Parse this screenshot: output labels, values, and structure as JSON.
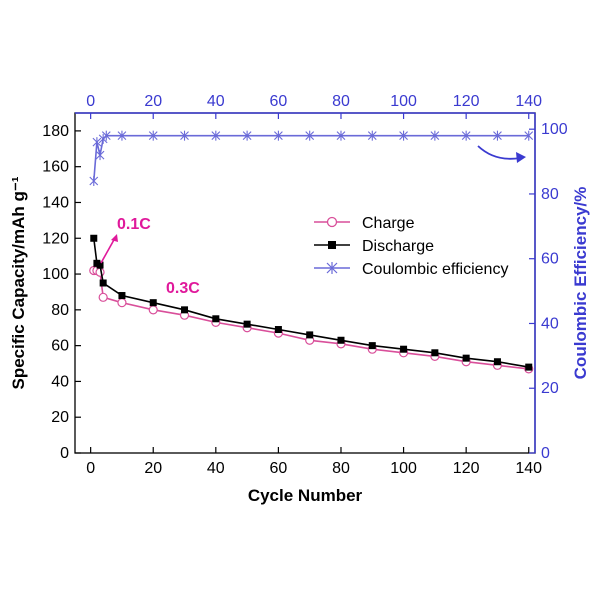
{
  "chart_data": {
    "type": "line",
    "title": "",
    "xlabel": "Cycle Number",
    "ylabel_left": "Specific Capacity/mAh g⁻¹",
    "ylabel_right": "Coulombic Efficiency/%",
    "xlim": [
      -5,
      142
    ],
    "ylim_left": [
      0,
      190
    ],
    "ylim_right": [
      0,
      105
    ],
    "x_ticks": [
      0,
      20,
      40,
      60,
      80,
      100,
      120,
      140
    ],
    "y_left_ticks": [
      0,
      20,
      40,
      60,
      80,
      100,
      120,
      140,
      160,
      180
    ],
    "y_right_ticks": [
      0,
      20,
      40,
      60,
      80,
      100
    ],
    "top_axis_ticks": [
      0,
      20,
      40,
      60,
      80,
      100,
      120,
      140
    ],
    "legend": {
      "position": "center-right",
      "entries": [
        "Charge",
        "Discharge",
        "Coulombic efficiency"
      ]
    },
    "annotations": [
      {
        "text": "0.1C",
        "color": "#e0199b"
      },
      {
        "text": "0.3C",
        "color": "#e0199b"
      }
    ],
    "colors": {
      "charge": "#d94f9a",
      "discharge": "#000000",
      "ce": "#6a6ad8",
      "right_axis": "#3a3ad0",
      "annotation": "#e0199b"
    },
    "series": [
      {
        "name": "Charge",
        "axis": "left",
        "marker": "open-circle",
        "x": [
          1,
          2,
          3,
          4,
          10,
          20,
          30,
          40,
          50,
          60,
          70,
          80,
          90,
          100,
          110,
          120,
          130,
          140
        ],
        "values": [
          102,
          102,
          101,
          87,
          84,
          80,
          77,
          73,
          70,
          67,
          63,
          61,
          58,
          56,
          54,
          51,
          49,
          47
        ]
      },
      {
        "name": "Discharge",
        "axis": "left",
        "marker": "filled-square",
        "x": [
          1,
          2,
          3,
          4,
          10,
          20,
          30,
          40,
          50,
          60,
          70,
          80,
          90,
          100,
          110,
          120,
          130,
          140
        ],
        "values": [
          120,
          106,
          105,
          95,
          88,
          84,
          80,
          75,
          72,
          69,
          66,
          63,
          60,
          58,
          56,
          53,
          51,
          48
        ]
      },
      {
        "name": "Coulombic efficiency",
        "axis": "right",
        "marker": "asterisk",
        "x": [
          1,
          2,
          3,
          4,
          5,
          10,
          20,
          30,
          40,
          50,
          60,
          70,
          80,
          90,
          100,
          110,
          120,
          130,
          140
        ],
        "values": [
          84,
          96,
          92,
          97,
          98,
          98,
          98,
          98,
          98,
          98,
          98,
          98,
          98,
          98,
          98,
          98,
          98,
          98,
          98
        ]
      }
    ]
  }
}
